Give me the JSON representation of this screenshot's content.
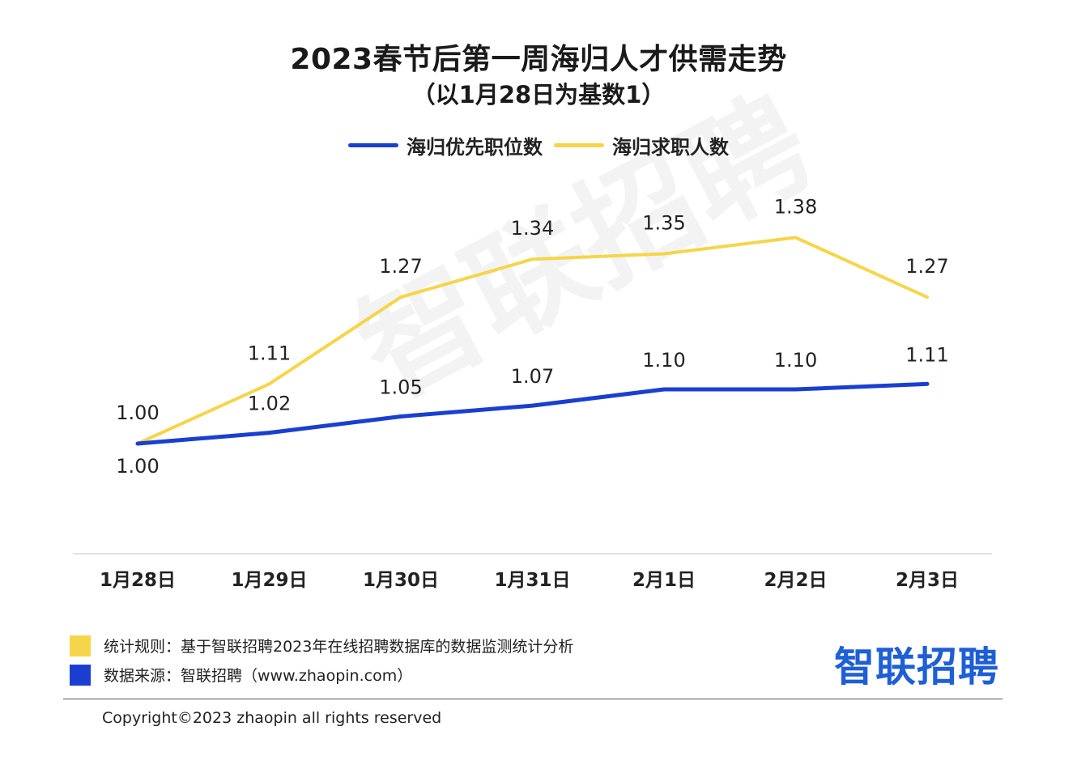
{
  "title": "2023春节后第一周海归人才供需走势",
  "subtitle": "（以1月28日为基数1）",
  "watermark": "智联招聘",
  "chart_data": {
    "type": "line",
    "categories": [
      "1月28日",
      "1月29日",
      "1月30日",
      "1月31日",
      "2月1日",
      "2月2日",
      "2月3日"
    ],
    "series": [
      {
        "name": "海归优先职位数",
        "color": "#1a3fd0",
        "values": [
          1.0,
          1.02,
          1.05,
          1.07,
          1.1,
          1.1,
          1.11
        ],
        "labels": [
          "1.00",
          "1.02",
          "1.05",
          "1.07",
          "1.10",
          "1.10",
          "1.11"
        ]
      },
      {
        "name": "海归求职人数",
        "color": "#f5d54a",
        "values": [
          1.0,
          1.11,
          1.27,
          1.34,
          1.35,
          1.38,
          1.27
        ],
        "labels": [
          "1.00",
          "1.11",
          "1.27",
          "1.34",
          "1.35",
          "1.38",
          "1.27"
        ]
      }
    ],
    "legend": "top-center",
    "grid": false
  },
  "footer": {
    "rule_text": "统计规则：基于智联招聘2023年在线招聘数据库的数据监测统计分析",
    "rule_color": "#f5d54a",
    "source_text": "数据来源：智联招聘（www.zhaopin.com）",
    "source_color": "#1a3fd0",
    "brand": "智联招聘",
    "copyright": "Copyright©2023 zhaopin all rights reserved"
  }
}
